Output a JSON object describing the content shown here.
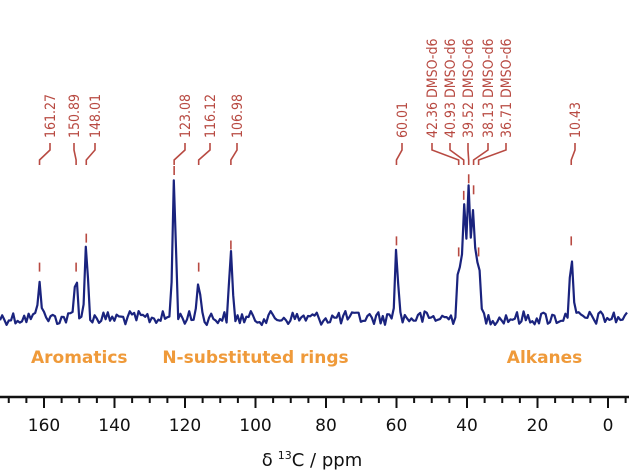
{
  "chart_data": {
    "type": "line",
    "xlabel": "δ 13C / ppm",
    "xlabel_parts": {
      "delta": "δ",
      "sup": "13",
      "rest": "C / ppm"
    },
    "xlim": [
      172.5,
      -6
    ],
    "x_reversed": true,
    "x_ticks": [
      160,
      140,
      120,
      100,
      80,
      60,
      40,
      20,
      0
    ],
    "x_minor_step": 5,
    "grid": false,
    "y_axis_shown": false,
    "peaks": [
      {
        "ppm": 161.27,
        "label": "161.27",
        "intensity": 0.3
      },
      {
        "ppm": 150.89,
        "label": "150.89",
        "intensity": 0.3
      },
      {
        "ppm": 148.01,
        "label": "148.01",
        "intensity": 0.51
      },
      {
        "ppm": 123.08,
        "label": "123.08",
        "intensity": 1.0
      },
      {
        "ppm": 116.12,
        "label": "116.12",
        "intensity": 0.3
      },
      {
        "ppm": 106.98,
        "label": "106.98",
        "intensity": 0.46
      },
      {
        "ppm": 60.01,
        "label": "60.01",
        "intensity": 0.49
      },
      {
        "ppm": 42.36,
        "label": "42.36 DMSO-d6",
        "intensity": 0.41
      },
      {
        "ppm": 40.93,
        "label": "40.93 DMSO-d6",
        "intensity": 0.82
      },
      {
        "ppm": 39.52,
        "label": "39.52 DMSO-d6",
        "intensity": 0.94
      },
      {
        "ppm": 38.13,
        "label": "38.13 DMSO-d6",
        "intensity": 0.86
      },
      {
        "ppm": 36.71,
        "label": "36.71 DMSO-d6",
        "intensity": 0.41
      },
      {
        "ppm": 10.43,
        "label": "10.43",
        "intensity": 0.49
      }
    ],
    "regions": [
      {
        "label": "Aromatics",
        "center_ppm": 150
      },
      {
        "label": "N-substituted rings",
        "center_ppm": 100
      },
      {
        "label": "Alkanes",
        "center_ppm": 18
      }
    ],
    "colors": {
      "spectrum": "#1a237e",
      "peak_labels": "#b84a42",
      "regions": "#ef9a3a",
      "axis": "#111111"
    }
  }
}
